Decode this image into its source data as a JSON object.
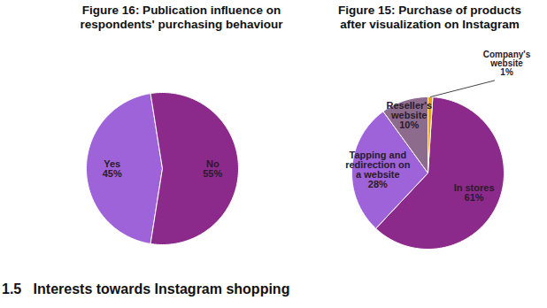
{
  "chart_data": [
    {
      "type": "pie",
      "title": "Figure 16: Publication influence on respondents' purchasing behaviour",
      "categories": [
        "Yes",
        "No"
      ],
      "values": [
        45,
        55
      ],
      "value_labels": [
        "45%",
        "55%"
      ],
      "colors": [
        "#9f63d9",
        "#8c2a8c"
      ],
      "data_labels": true
    },
    {
      "type": "pie",
      "title": "Figure 15: Purchase of products after visualization on Instagram",
      "categories": [
        "In stores",
        "Tapping and redirection on a website",
        "Reseller's website",
        "Company's website"
      ],
      "values": [
        61,
        28,
        10,
        1
      ],
      "value_labels": [
        "61%",
        "28%",
        "10%",
        "1%"
      ],
      "colors": [
        "#8c2a8c",
        "#9f63d9",
        "#8d6b8d",
        "#e8a317"
      ],
      "data_labels": true
    }
  ],
  "section_heading": "1.5   Interests towards Instagram shopping"
}
